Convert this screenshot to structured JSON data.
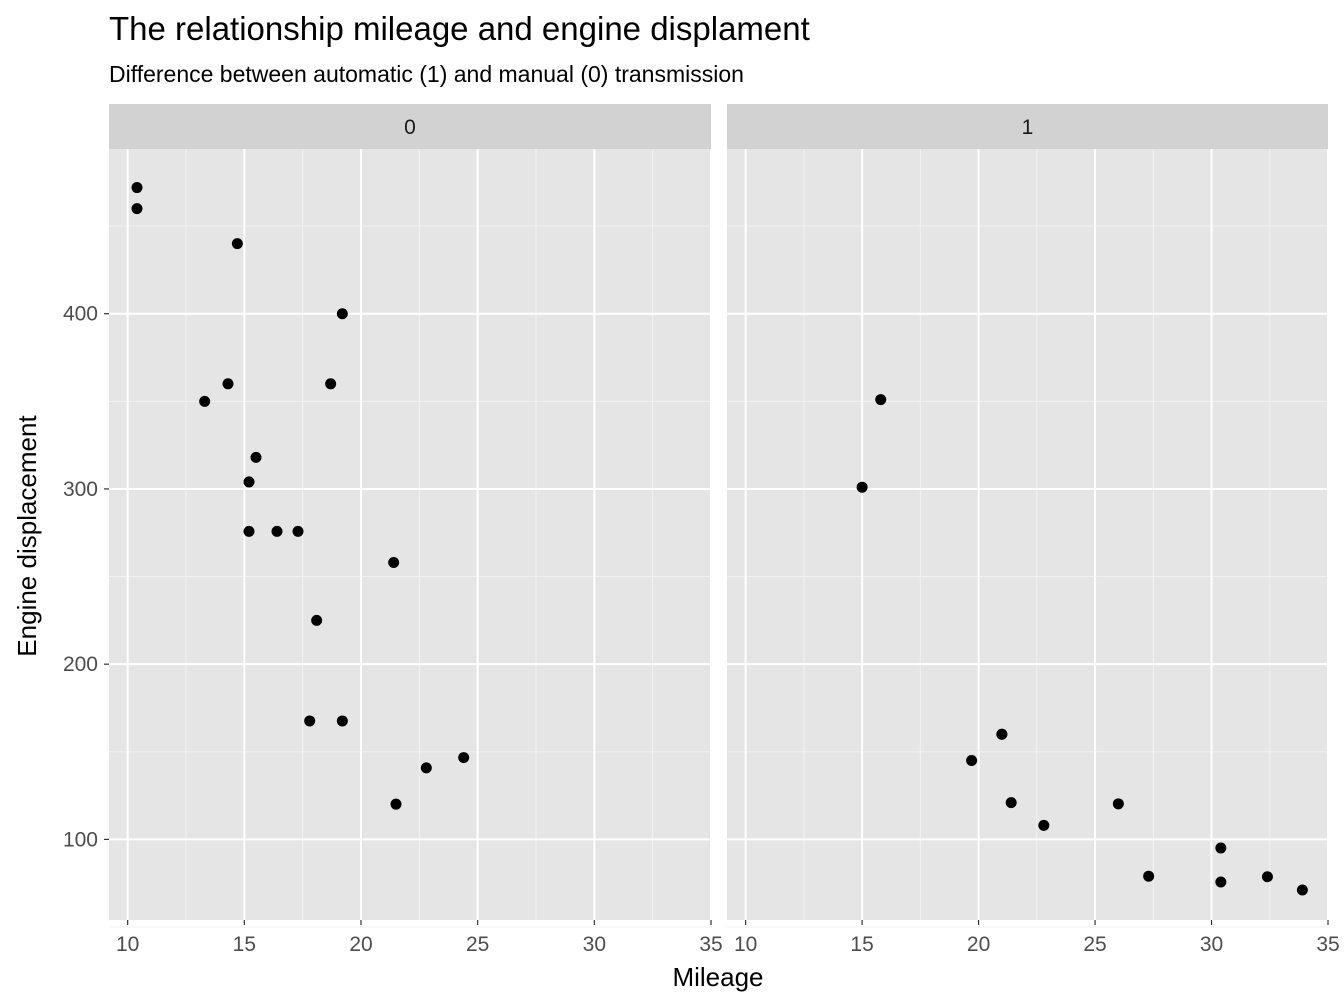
{
  "chart_data": {
    "type": "scatter",
    "title": "The relationship mileage and engine displament",
    "subtitle": "Difference between automatic (1) and manual (0) transmission",
    "xlabel": "Mileage",
    "ylabel": "Engine displacement",
    "xlim": [
      9.2,
      35
    ],
    "ylim": [
      54,
      494
    ],
    "x_ticks": [
      10,
      15,
      20,
      25,
      30,
      35
    ],
    "y_ticks": [
      100,
      200,
      300,
      400
    ],
    "grid": true,
    "panel_background": "#e5e5e5",
    "strip_background": "#d2d2d2",
    "point_color": "#000000",
    "facets": [
      {
        "label": "0",
        "points": [
          {
            "x": 10.4,
            "y": 472
          },
          {
            "x": 10.4,
            "y": 460
          },
          {
            "x": 14.7,
            "y": 440
          },
          {
            "x": 19.2,
            "y": 400
          },
          {
            "x": 14.3,
            "y": 360
          },
          {
            "x": 18.7,
            "y": 360
          },
          {
            "x": 13.3,
            "y": 350
          },
          {
            "x": 15.5,
            "y": 318
          },
          {
            "x": 15.2,
            "y": 304
          },
          {
            "x": 15.2,
            "y": 275.8
          },
          {
            "x": 16.4,
            "y": 275.8
          },
          {
            "x": 17.3,
            "y": 275.8
          },
          {
            "x": 21.4,
            "y": 258
          },
          {
            "x": 18.1,
            "y": 225
          },
          {
            "x": 17.8,
            "y": 167.6
          },
          {
            "x": 19.2,
            "y": 167.6
          },
          {
            "x": 24.4,
            "y": 146.7
          },
          {
            "x": 22.8,
            "y": 140.8
          },
          {
            "x": 21.5,
            "y": 120.1
          }
        ]
      },
      {
        "label": "1",
        "points": [
          {
            "x": 15.8,
            "y": 351
          },
          {
            "x": 15.0,
            "y": 301
          },
          {
            "x": 21.0,
            "y": 160
          },
          {
            "x": 21.0,
            "y": 160
          },
          {
            "x": 19.7,
            "y": 145
          },
          {
            "x": 21.4,
            "y": 121
          },
          {
            "x": 26.0,
            "y": 120.3
          },
          {
            "x": 22.8,
            "y": 108
          },
          {
            "x": 30.4,
            "y": 95.1
          },
          {
            "x": 27.3,
            "y": 79
          },
          {
            "x": 32.4,
            "y": 78.7
          },
          {
            "x": 30.4,
            "y": 75.7
          },
          {
            "x": 33.9,
            "y": 71.1
          }
        ]
      }
    ]
  }
}
